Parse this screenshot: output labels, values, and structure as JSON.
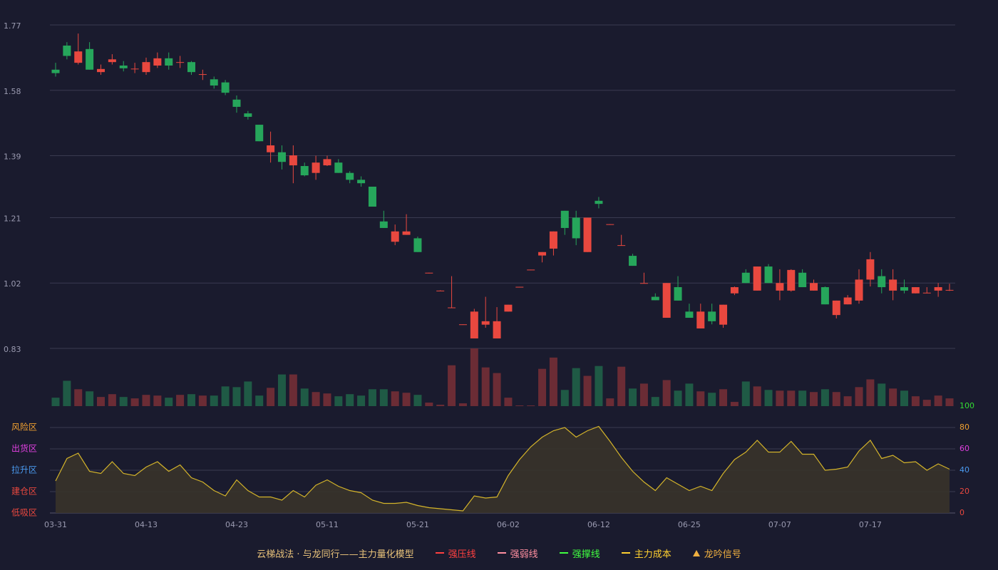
{
  "chart_data": {
    "type": "candlestick",
    "title": "云梯战法 · 与龙同行——主力量化模型",
    "title_color": "#e8c27a",
    "categories": [
      "03-31",
      null,
      null,
      null,
      null,
      null,
      null,
      null,
      "04-13",
      null,
      null,
      null,
      null,
      null,
      null,
      null,
      "04-23",
      null,
      null,
      null,
      null,
      null,
      null,
      null,
      "05-11",
      null,
      null,
      null,
      null,
      null,
      null,
      null,
      "05-21",
      null,
      null,
      null,
      null,
      null,
      null,
      null,
      "06-02",
      null,
      null,
      null,
      null,
      null,
      null,
      null,
      "06-12",
      null,
      null,
      null,
      null,
      null,
      null,
      null,
      "06-25",
      null,
      null,
      null,
      null,
      null,
      null,
      null,
      "07-07",
      null,
      null,
      null,
      null,
      null,
      null,
      null,
      "07-17",
      null,
      null,
      null,
      null,
      null,
      null,
      null
    ],
    "open": [
      1.64,
      1.71,
      1.66,
      1.7,
      1.633,
      1.662,
      1.652,
      1.641,
      1.633,
      1.652,
      1.673,
      1.66,
      1.662,
      1.625,
      1.612,
      1.603,
      1.553,
      1.513,
      1.48,
      1.4,
      1.4,
      1.362,
      1.36,
      1.34,
      1.362,
      1.37,
      1.34,
      1.32,
      1.3,
      1.199,
      1.14,
      1.16,
      1.15,
      1.049,
      0.997,
      0.948,
      0.899,
      0.859,
      0.899,
      0.859,
      0.937,
      1.008,
      1.058,
      1.1,
      1.12,
      1.23,
      1.21,
      1.11,
      1.259,
      1.19,
      1.129,
      1.099,
      1.019,
      0.98,
      0.919,
      1.008,
      0.937,
      0.888,
      0.937,
      0.899,
      0.99,
      1.05,
      0.998,
      1.068,
      0.998,
      0.998,
      1.05,
      0.998,
      1.008,
      0.927,
      0.958,
      0.969,
      1.03,
      1.04,
      0.998,
      1.008,
      0.99,
      0.99,
      0.998,
      0.999
    ],
    "close": [
      1.63,
      1.68,
      1.693,
      1.64,
      1.642,
      1.67,
      1.644,
      1.643,
      1.662,
      1.673,
      1.652,
      1.662,
      1.633,
      1.627,
      1.594,
      1.573,
      1.532,
      1.503,
      1.432,
      1.42,
      1.372,
      1.391,
      1.333,
      1.37,
      1.38,
      1.34,
      1.32,
      1.31,
      1.242,
      1.18,
      1.17,
      1.17,
      1.11,
      1.05,
      0.998,
      0.949,
      0.9,
      0.937,
      0.909,
      0.909,
      0.957,
      1.009,
      1.059,
      1.11,
      1.17,
      1.18,
      1.15,
      1.21,
      1.25,
      1.191,
      1.13,
      1.07,
      1.02,
      0.97,
      1.02,
      0.969,
      0.919,
      0.937,
      0.909,
      0.957,
      1.008,
      1.02,
      1.068,
      1.02,
      1.02,
      1.058,
      1.008,
      1.02,
      0.958,
      0.969,
      0.978,
      1.03,
      1.089,
      1.008,
      1.03,
      0.998,
      1.008,
      0.992,
      1.008,
      1.0
    ],
    "high": [
      1.66,
      1.72,
      1.745,
      1.72,
      1.655,
      1.685,
      1.665,
      1.66,
      1.675,
      1.69,
      1.69,
      1.68,
      1.665,
      1.64,
      1.62,
      1.61,
      1.565,
      1.52,
      1.48,
      1.46,
      1.42,
      1.42,
      1.37,
      1.39,
      1.39,
      1.38,
      1.345,
      1.33,
      1.3,
      1.23,
      1.19,
      1.22,
      1.155,
      1.05,
      0.999,
      1.04,
      0.9,
      0.945,
      0.98,
      0.95,
      0.957,
      1.009,
      1.059,
      1.11,
      1.17,
      1.23,
      1.23,
      1.21,
      1.27,
      1.191,
      1.16,
      1.105,
      1.05,
      0.99,
      1.02,
      1.04,
      0.96,
      0.96,
      0.96,
      0.957,
      1.01,
      1.06,
      1.068,
      1.075,
      1.06,
      1.06,
      1.06,
      1.03,
      1.01,
      0.969,
      0.985,
      1.06,
      1.11,
      1.06,
      1.06,
      1.03,
      1.008,
      1.008,
      1.02,
      1.018
    ],
    "low": [
      1.62,
      1.67,
      1.655,
      1.64,
      1.625,
      1.655,
      1.635,
      1.63,
      1.625,
      1.645,
      1.64,
      1.645,
      1.625,
      1.61,
      1.585,
      1.566,
      1.515,
      1.495,
      1.432,
      1.37,
      1.35,
      1.31,
      1.33,
      1.32,
      1.36,
      1.34,
      1.31,
      1.3,
      1.242,
      1.18,
      1.13,
      1.16,
      1.11,
      1.048,
      0.997,
      0.948,
      0.899,
      0.859,
      0.89,
      0.859,
      0.937,
      1.007,
      1.057,
      1.08,
      1.1,
      1.16,
      1.13,
      1.11,
      1.237,
      1.189,
      1.129,
      1.07,
      1.019,
      0.97,
      0.919,
      0.969,
      0.919,
      0.888,
      0.9,
      0.89,
      0.985,
      1.02,
      0.998,
      1.02,
      0.97,
      0.995,
      1.008,
      0.998,
      0.958,
      0.917,
      0.958,
      0.96,
      1.01,
      0.99,
      0.97,
      0.99,
      0.99,
      0.99,
      0.98,
      0.997
    ],
    "volume": [
      12,
      36,
      24,
      21,
      13,
      17,
      13,
      11,
      16,
      15,
      12,
      16,
      17,
      15,
      15,
      28,
      27,
      35,
      15,
      26,
      45,
      45,
      25,
      20,
      18,
      14,
      17,
      15,
      24,
      24,
      21,
      19,
      16,
      5,
      2,
      58,
      4,
      82,
      55,
      47,
      12,
      1,
      1,
      53,
      69,
      23,
      54,
      43,
      57,
      11,
      56,
      25,
      32,
      13,
      37,
      22,
      32,
      21,
      19,
      24,
      6,
      35,
      28,
      23,
      22,
      22,
      22,
      20,
      24,
      20,
      14,
      27,
      38,
      32,
      25,
      22,
      14,
      9,
      15,
      11
    ],
    "up_color": "#e9483f",
    "down_color": "#26a65b",
    "up_volume_color": "#6b2c35",
    "down_volume_color": "#1f5a45",
    "ylim": [
      0.83,
      1.77
    ],
    "yticks": [
      0.83,
      1.02,
      1.21,
      1.39,
      1.58,
      1.77
    ],
    "grid": true,
    "indicator": {
      "values": [
        30,
        51,
        56,
        39,
        37,
        48,
        37,
        35,
        43,
        48,
        39,
        45,
        33,
        29,
        21,
        16,
        31,
        21,
        15,
        15,
        12,
        21,
        15,
        26,
        31,
        25,
        21,
        19,
        12,
        9,
        9,
        10,
        7,
        5,
        4,
        3,
        2,
        16,
        14,
        15,
        35,
        50,
        62,
        71,
        77,
        80,
        71,
        77,
        81,
        67,
        52,
        39,
        29,
        21,
        33,
        27,
        21,
        25,
        21,
        37,
        50,
        57,
        68,
        57,
        57,
        67,
        55,
        55,
        40,
        41,
        43,
        58,
        68,
        51,
        54,
        47,
        48,
        40,
        46,
        41
      ],
      "color": "#d4b42a",
      "fill": "#38332a",
      "y2lim": [
        0,
        100
      ],
      "y2ticks": [
        0,
        20,
        40,
        60,
        80,
        100
      ],
      "y2tick_colors": [
        "#e9483f",
        "#e9483f",
        "#4a9af0",
        "#e040e0",
        "#f0a030",
        "#33dd33"
      ],
      "zones": [
        {
          "label": "风险区",
          "value": 80,
          "color": "#f0a030"
        },
        {
          "label": "出货区",
          "value": 60,
          "color": "#e040e0"
        },
        {
          "label": "拉升区",
          "value": 40,
          "color": "#4a9af0"
        },
        {
          "label": "建仓区",
          "value": 20,
          "color": "#e9483f"
        },
        {
          "label": "低吸区",
          "value": 0,
          "color": "#e9483f"
        }
      ]
    },
    "legend": [
      {
        "name": "强压线",
        "color": "#ff4040",
        "style": "solid"
      },
      {
        "name": "强弱线",
        "color": "#ff8fa0",
        "style": "dashed"
      },
      {
        "name": "强撑线",
        "color": "#40ff40",
        "style": "solid"
      },
      {
        "name": "主力成本",
        "color": "#ffd030",
        "style": "dashed"
      },
      {
        "name": "龙吟信号",
        "color": "#f0b040",
        "style": "triangle"
      }
    ]
  }
}
